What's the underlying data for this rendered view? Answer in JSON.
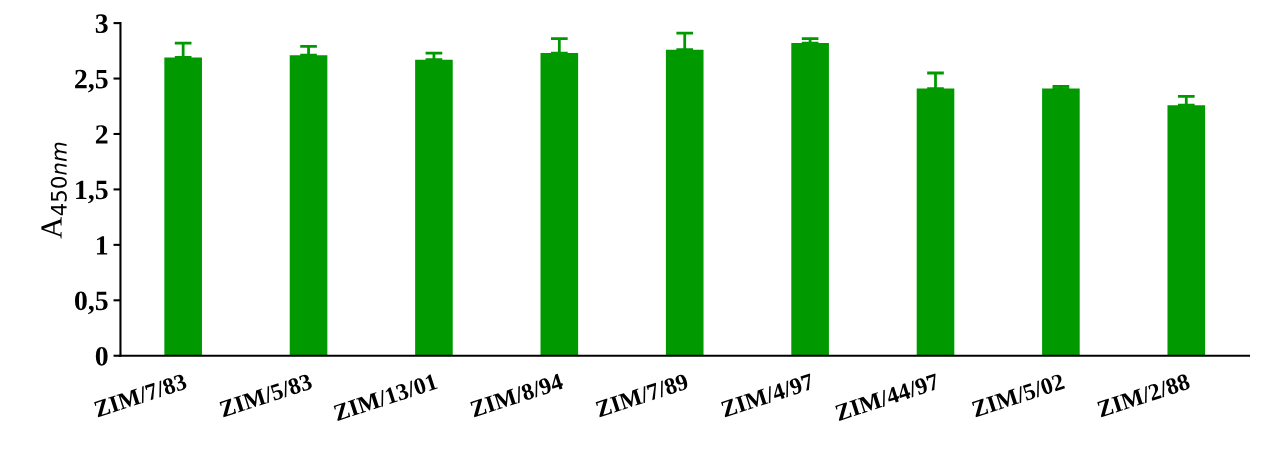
{
  "chart_data": {
    "type": "bar",
    "ylabel": "A$_{450nm}$",
    "categories": [
      "ZIM/7/83",
      "ZIM/5/83",
      "ZIM/13/01",
      "ZIM/8/94",
      "ZIM/7/89",
      "ZIM/4/97",
      "ZIM/44/97",
      "ZIM/5/02",
      "ZIM/2/88"
    ],
    "values": [
      2.69,
      2.71,
      2.67,
      2.73,
      2.76,
      2.82,
      2.41,
      2.41,
      2.26
    ],
    "errors": [
      [
        2.69,
        2.82
      ],
      [
        2.71,
        2.79
      ],
      [
        2.67,
        2.73
      ],
      [
        2.73,
        2.86
      ],
      [
        2.76,
        2.91
      ],
      [
        2.82,
        2.86
      ],
      [
        2.41,
        2.55
      ],
      [
        2.41,
        2.43
      ],
      [
        2.26,
        2.34
      ]
    ],
    "color": "#009900",
    "ylim": [
      0,
      3
    ],
    "yticks": [
      {
        "value": 0,
        "label": "0"
      },
      {
        "value": 0.5,
        "label": "0,5"
      },
      {
        "value": 1,
        "label": "1"
      },
      {
        "value": 1.5,
        "label": "1,5"
      },
      {
        "value": 2,
        "label": "2"
      },
      {
        "value": 2.5,
        "label": "2,5"
      },
      {
        "value": 3,
        "label": "3"
      }
    ],
    "grid": false,
    "legend": false
  }
}
